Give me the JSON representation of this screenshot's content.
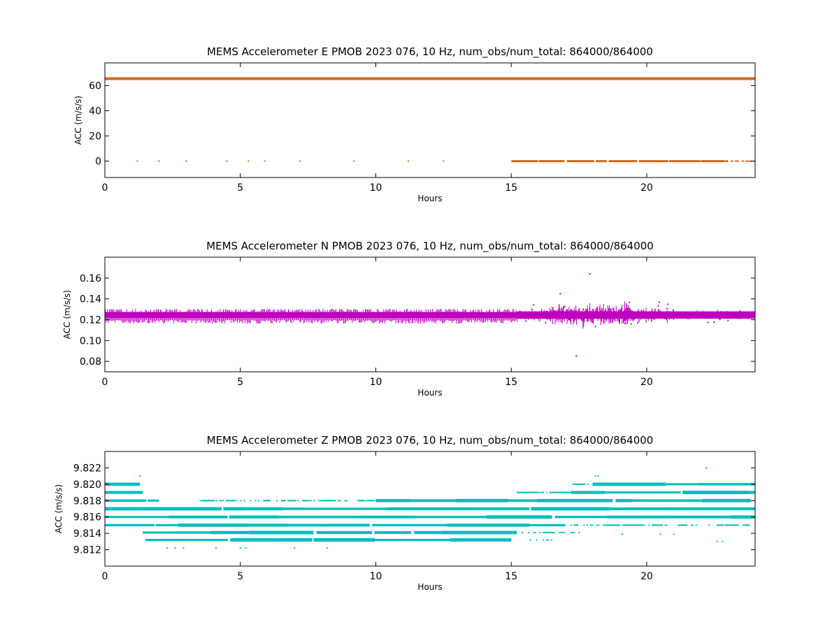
{
  "chart_data": [
    {
      "type": "scatter",
      "title": "MEMS Accelerometer E PMOB 2023 076, 10 Hz, num_obs/num_total: 864000/864000",
      "xlabel": "Hours",
      "ylabel": "ACC (m/s/s)",
      "xlim": [
        0,
        24
      ],
      "ylim": [
        -13,
        78
      ],
      "xticks": [
        0,
        5,
        10,
        15,
        20
      ],
      "xtick_labels": [
        "0",
        "5",
        "10",
        "15",
        "20"
      ],
      "yticks": [
        0,
        20,
        40,
        60
      ],
      "ytick_labels": [
        "0",
        "20",
        "40",
        "60"
      ],
      "grid": false,
      "legend": "none",
      "color": "#d2691e",
      "series": [
        {
          "segments": [
            [
              0,
              24,
              65.5
            ]
          ],
          "points": [
            [
              1.2,
              0
            ],
            [
              2.0,
              0
            ],
            [
              3.0,
              0
            ],
            [
              4.5,
              0
            ],
            [
              5.3,
              0
            ],
            [
              5.9,
              0
            ],
            [
              7.2,
              0
            ],
            [
              9.2,
              0
            ],
            [
              11.2,
              0
            ],
            [
              12.5,
              0
            ]
          ],
          "dense_segments": [
            [
              15.0,
              23.0,
              0
            ],
            [
              23.0,
              24.0,
              0
            ]
          ]
        }
      ]
    },
    {
      "type": "scatter",
      "title": "MEMS Accelerometer N PMOB 2023 076, 10 Hz, num_obs/num_total: 864000/864000",
      "xlabel": "Hours",
      "ylabel": "ACC (m/s/s)",
      "xlim": [
        0,
        24
      ],
      "ylim": [
        0.07,
        0.18
      ],
      "xticks": [
        0,
        5,
        10,
        15,
        20
      ],
      "xtick_labels": [
        "0",
        "5",
        "10",
        "15",
        "20"
      ],
      "yticks": [
        0.08,
        0.1,
        0.12,
        0.14,
        0.16
      ],
      "ytick_labels": [
        "0.08",
        "0.10",
        "0.12",
        "0.14",
        "0.16"
      ],
      "grid": false,
      "legend": "none",
      "color": "#bf00bf",
      "series": [
        {
          "baseline": 0.1245,
          "quiet_band": [
            0,
            15.2,
            0.0035
          ],
          "noisy_band": [
            15.2,
            24,
            0.02
          ],
          "peak_region": [
            16.5,
            19.5
          ],
          "max_value": 0.164,
          "min_value": 0.085
        }
      ]
    },
    {
      "type": "scatter",
      "title": "MEMS Accelerometer Z PMOB 2023 076, 10 Hz, num_obs/num_total: 864000/864000",
      "xlabel": "Hours",
      "ylabel": "ACC (m/s/s)",
      "xlim": [
        0,
        24
      ],
      "ylim": [
        9.81,
        9.824
      ],
      "xticks": [
        0,
        5,
        10,
        15,
        20
      ],
      "xtick_labels": [
        "0",
        "5",
        "10",
        "15",
        "20"
      ],
      "yticks": [
        9.812,
        9.814,
        9.816,
        9.818,
        9.82,
        9.822
      ],
      "ytick_labels": [
        "9.812",
        "9.814",
        "9.816",
        "9.818",
        "9.820",
        "9.822"
      ],
      "grid": false,
      "legend": "none",
      "color": "#00bfbf",
      "series": [
        {
          "levels": [
            {
              "y": 9.8132,
              "segments": [
                [
                  1.5,
                  15.0
                ]
              ],
              "sparse": [
                [
                  15.5,
                  16.5
                ]
              ]
            },
            {
              "y": 9.8141,
              "segments": [
                [
                  1.4,
                  15.2
                ]
              ],
              "sparse": [
                [
                  15.2,
                  17.5
                ]
              ]
            },
            {
              "y": 9.815,
              "segments": [
                [
                  0,
                  17.0
                ]
              ],
              "sparse": [
                [
                  17.0,
                  24
                ]
              ]
            },
            {
              "y": 9.816,
              "segments": [
                [
                  0,
                  24
                ]
              ],
              "sparse": []
            },
            {
              "y": 9.817,
              "segments": [
                [
                  0,
                  24
                ]
              ],
              "sparse": []
            },
            {
              "y": 9.818,
              "segments": [
                [
                  0,
                  2.0
                ],
                [
                  10.0,
                  24
                ]
              ],
              "sparse": [
                [
                  3.5,
                  10.0
                ]
              ]
            },
            {
              "y": 9.819,
              "segments": [
                [
                  0,
                  1.4
                ],
                [
                  17.2,
                  24
                ]
              ],
              "sparse": [
                [
                  15.2,
                  17.2
                ]
              ]
            },
            {
              "y": 9.82,
              "segments": [
                [
                  0,
                  1.3
                ],
                [
                  18.0,
                  24
                ]
              ],
              "sparse": [
                [
                  17.2,
                  18.0
                ]
              ]
            }
          ],
          "outliers": [
            [
              1.3,
              9.821
            ],
            [
              18.1,
              9.821
            ],
            [
              18.2,
              9.821
            ],
            [
              22.2,
              9.822
            ],
            [
              2.3,
              9.8122
            ],
            [
              2.6,
              9.8122
            ],
            [
              2.9,
              9.8122
            ],
            [
              4.1,
              9.8122
            ],
            [
              5.0,
              9.8122
            ],
            [
              5.2,
              9.8122
            ],
            [
              7.0,
              9.8122
            ],
            [
              8.2,
              9.8122
            ],
            [
              22.6,
              9.813
            ],
            [
              22.8,
              9.813
            ],
            [
              19.1,
              9.8139
            ],
            [
              20.5,
              9.8139
            ],
            [
              21.0,
              9.8139
            ]
          ]
        }
      ]
    }
  ]
}
